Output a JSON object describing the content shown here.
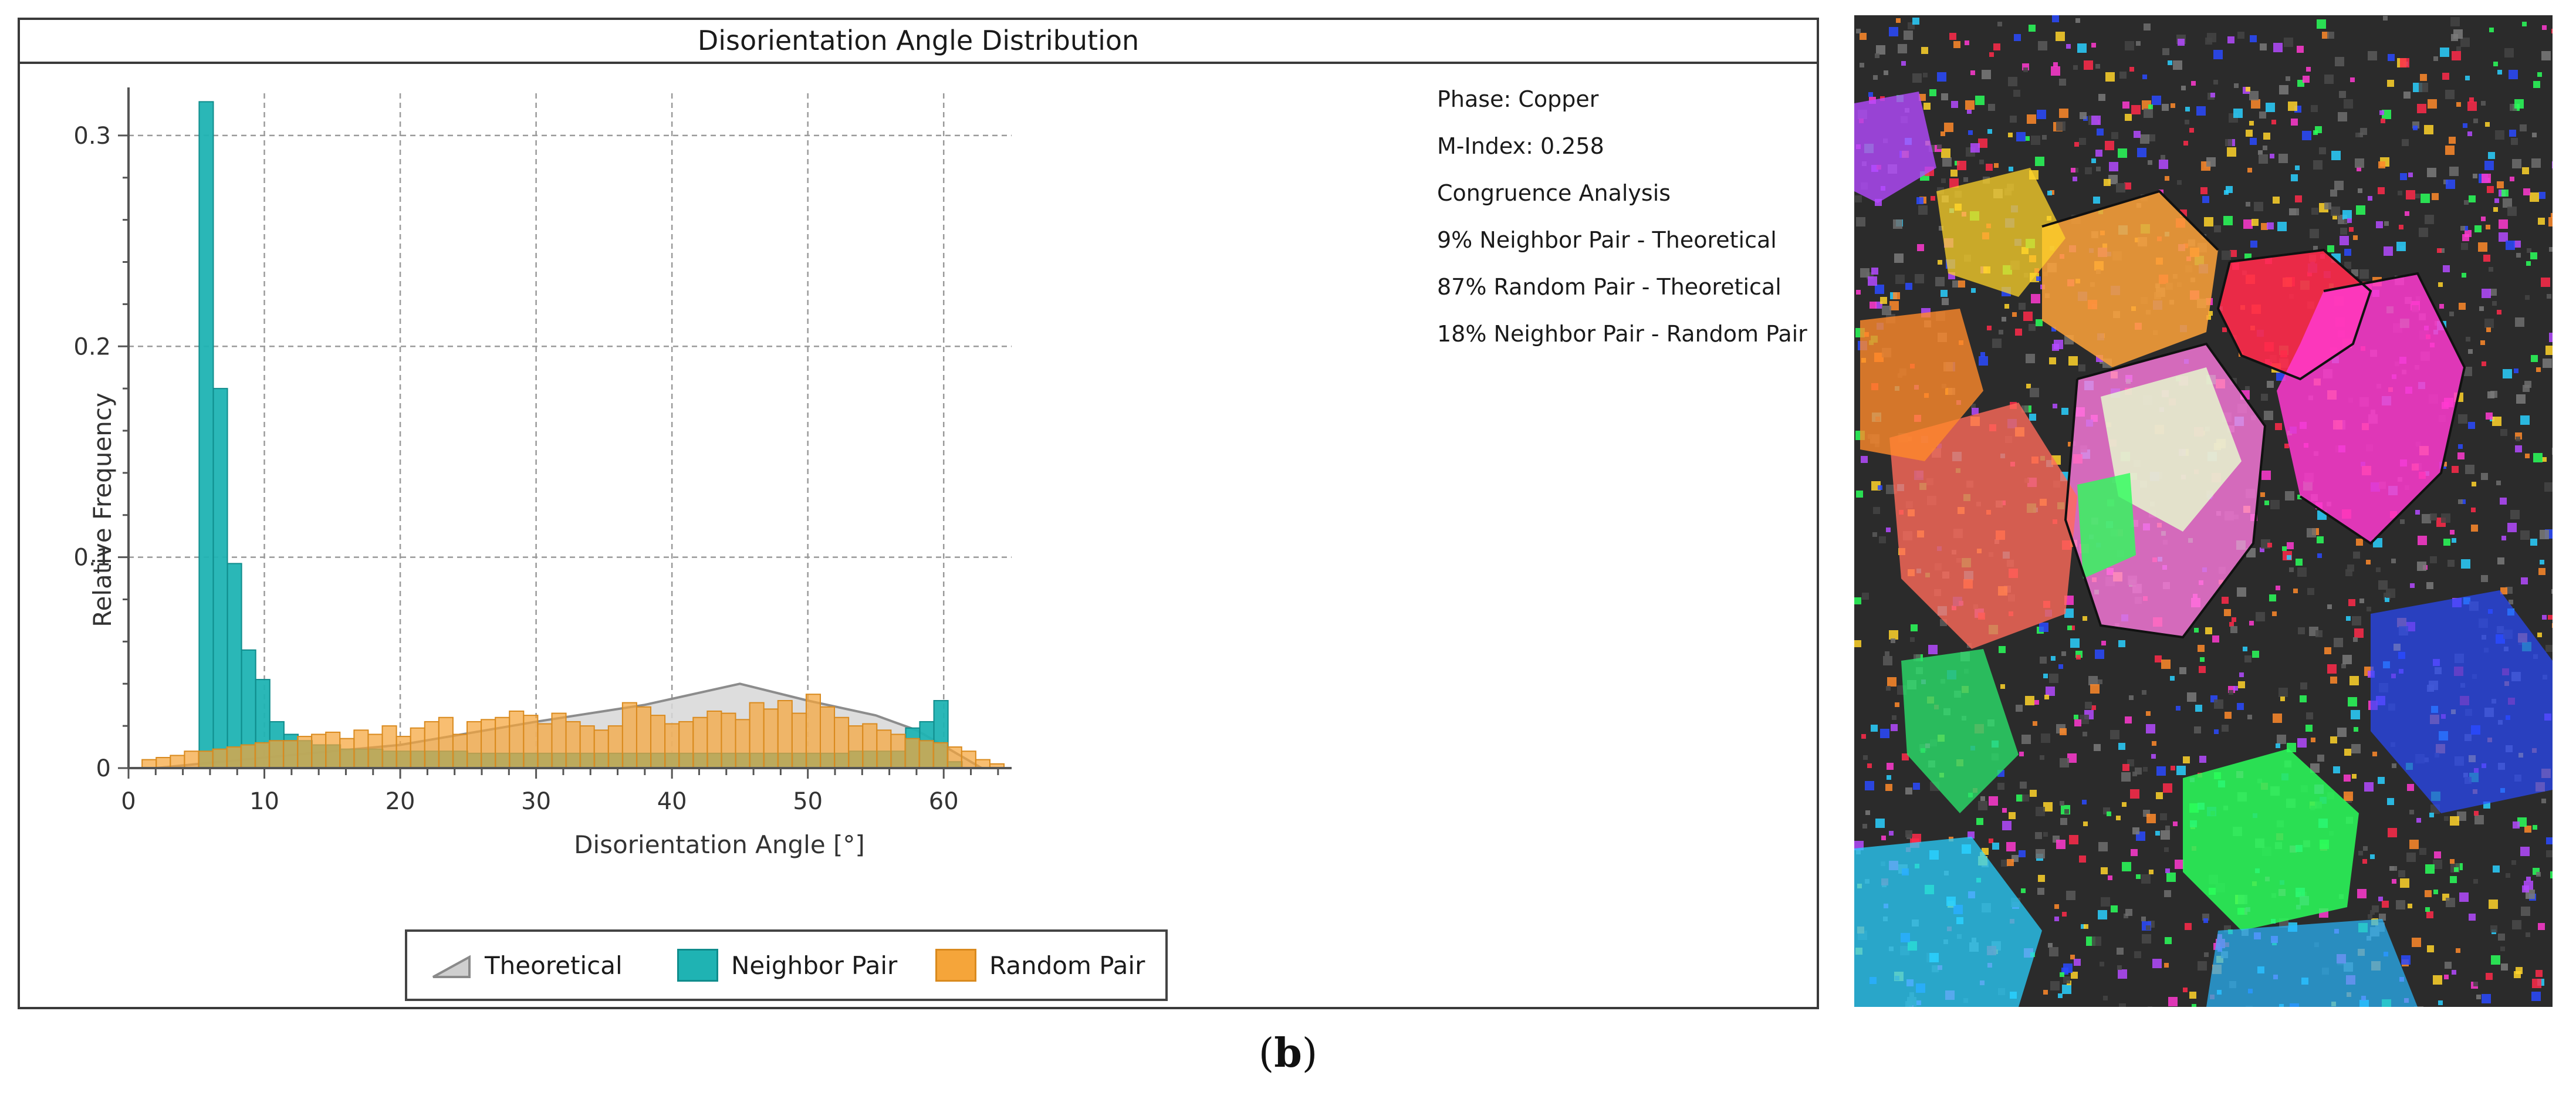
{
  "chart_data": {
    "type": "bar",
    "title": "Disorientation Angle Distribution",
    "xlabel": "Disorientation Angle [°]",
    "ylabel": "Relative Frequency",
    "xlim": [
      0,
      65
    ],
    "ylim": [
      0,
      0.32
    ],
    "xticks": [
      0,
      10,
      20,
      30,
      40,
      50,
      60
    ],
    "yticks": [
      0,
      0.1,
      0.2,
      0.3
    ],
    "xtick_labels": [
      "0",
      "10",
      "20",
      "30",
      "40",
      "50",
      "60"
    ],
    "ytick_labels": [
      "0",
      "0.1",
      "0.2",
      "0.3"
    ],
    "bin_width": 1.04,
    "grid": true,
    "legend_position": "bottom",
    "series": [
      {
        "name": "Theoretical",
        "kind": "area",
        "color": "#a8a8a8",
        "points": [
          [
            2,
            0
          ],
          [
            10,
            0.005
          ],
          [
            20,
            0.011
          ],
          [
            30,
            0.022
          ],
          [
            38,
            0.03
          ],
          [
            45,
            0.04
          ],
          [
            50,
            0.032
          ],
          [
            55,
            0.025
          ],
          [
            58,
            0.018
          ],
          [
            62.8,
            0
          ]
        ]
      },
      {
        "name": "Neighbor Pair",
        "kind": "bar",
        "color": "#1fb3b3",
        "edge": "#0f8c8c",
        "start": 5.2,
        "values": [
          0.316,
          0.18,
          0.097,
          0.056,
          0.042,
          0.022,
          0.016,
          0.013,
          0.011,
          0.011,
          0.009,
          0.009,
          0.009,
          0.008,
          0.008,
          0.008,
          0.008,
          0.008,
          0.008,
          0.007,
          0.007,
          0.007,
          0.007,
          0.007,
          0.007,
          0.007,
          0.007,
          0.007,
          0.007,
          0.007,
          0.007,
          0.007,
          0.007,
          0.007,
          0.007,
          0.007,
          0.007,
          0.007,
          0.007,
          0.007,
          0.007,
          0.007,
          0.007,
          0.007,
          0.007,
          0.007,
          0.008,
          0.008,
          0.008,
          0.008,
          0.019,
          0.022,
          0.032,
          0.003
        ]
      },
      {
        "name": "Random Pair",
        "kind": "bar",
        "color": "#f5a53a",
        "edge": "#d98a1e",
        "start": 1.0,
        "values": [
          0.004,
          0.005,
          0.006,
          0.008,
          0.008,
          0.009,
          0.01,
          0.011,
          0.012,
          0.013,
          0.013,
          0.015,
          0.016,
          0.017,
          0.014,
          0.018,
          0.016,
          0.02,
          0.015,
          0.019,
          0.022,
          0.024,
          0.016,
          0.022,
          0.023,
          0.024,
          0.027,
          0.025,
          0.021,
          0.026,
          0.022,
          0.02,
          0.018,
          0.02,
          0.031,
          0.029,
          0.025,
          0.021,
          0.022,
          0.024,
          0.027,
          0.026,
          0.023,
          0.031,
          0.028,
          0.032,
          0.026,
          0.035,
          0.029,
          0.024,
          0.02,
          0.021,
          0.018,
          0.016,
          0.014,
          0.013,
          0.012,
          0.01,
          0.008,
          0.004,
          0.002
        ]
      }
    ]
  },
  "info": {
    "lines": [
      "Phase: Copper",
      "M-Index: 0.258",
      "Congruence Analysis",
      "9% Neighbor Pair - Theoretical",
      "87% Random Pair - Theoretical",
      "18% Neighbor Pair  - Random Pair"
    ]
  },
  "legend": {
    "items": [
      {
        "label": "Theoretical",
        "color": "#b0b0b0"
      },
      {
        "label": "Neighbor Pair",
        "color": "#1fb3b3"
      },
      {
        "label": "Random Pair",
        "color": "#f5a53a"
      }
    ]
  },
  "caption": {
    "open": "(",
    "letter": "b",
    "close": ")"
  },
  "map": {
    "name": "EBSD orientation map",
    "background": "#2b2b2b",
    "grains": [
      {
        "color": "#ff2a4a",
        "name": "red-grain"
      },
      {
        "color": "#ff3ad0",
        "name": "magenta-grain"
      },
      {
        "color": "#ff8a2a",
        "name": "orange-grain"
      },
      {
        "color": "#ffd42a",
        "name": "yellow-grain"
      },
      {
        "color": "#2aff5a",
        "name": "green-grain"
      },
      {
        "color": "#2a4aff",
        "name": "blue-grain"
      },
      {
        "color": "#2ad0ff",
        "name": "cyan-grain"
      },
      {
        "color": "#b44aff",
        "name": "violet-grain"
      }
    ]
  }
}
